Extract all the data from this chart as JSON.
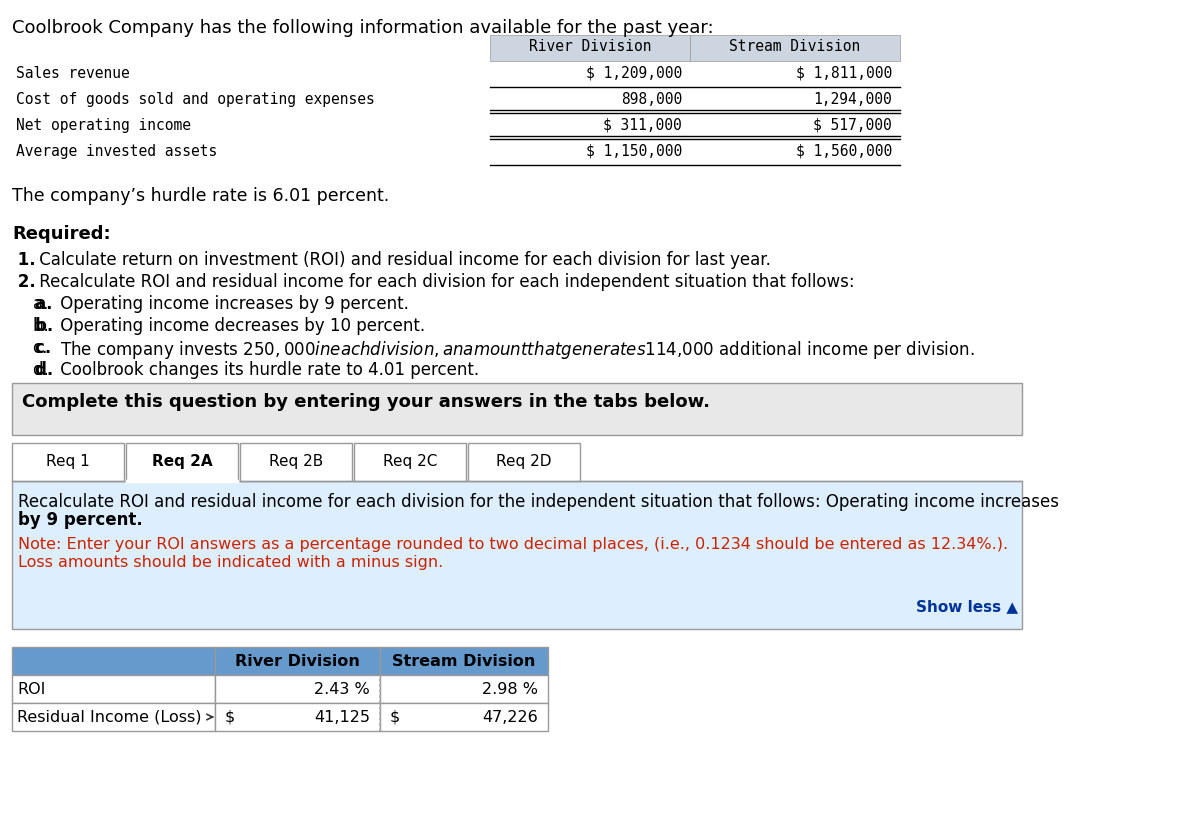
{
  "title_text": "Coolbrook Company has the following information available for the past year:",
  "top_table_rows": [
    [
      "Sales revenue",
      "$ 1,209,000",
      "$ 1,811,000"
    ],
    [
      "Cost of goods sold and operating expenses",
      "898,000",
      "1,294,000"
    ],
    [
      "Net operating income",
      "$ 311,000",
      "$ 517,000"
    ],
    [
      "Average invested assets",
      "$ 1,150,000",
      "$ 1,560,000"
    ]
  ],
  "hurdle_text": "The company’s hurdle rate is 6.01 percent.",
  "required_label": "Required:",
  "req_lines": [
    [
      " 1.",
      " Calculate return on investment (ROI) and residual income for each division for last year.",
      false
    ],
    [
      " 2.",
      " Recalculate ROI and residual income for each division for each independent situation that follows:",
      false
    ],
    [
      "    a.",
      " Operating income increases by 9 percent.",
      false
    ],
    [
      "    b.",
      " Operating income decreases by 10 percent.",
      false
    ],
    [
      "    c.",
      " The company invests $250,000 in each division, an amount that generates $114,000 additional income per division.",
      false
    ],
    [
      "    d.",
      " Coolbrook changes its hurdle rate to 4.01 percent.",
      false
    ]
  ],
  "complete_box_text": "Complete this question by entering your answers in the tabs below.",
  "tabs": [
    "Req 1",
    "Req 2A",
    "Req 2B",
    "Req 2C",
    "Req 2D"
  ],
  "active_tab_idx": 1,
  "instruction_line1": "Recalculate ROI and residual income for each division for the independent situation that follows: Operating income increases",
  "instruction_line2": "by 9 percent.",
  "note_line1": "Note: Enter your ROI answers as a percentage rounded to two decimal places, (i.e., 0.1234 should be entered as 12.34%.).",
  "note_line2": "Loss amounts should be indicated with a minus sign.",
  "show_less_text": "Show less ▲",
  "bt_col1_header": "River Division",
  "bt_col2_header": "Stream Division",
  "bt_row1_label": "ROI",
  "bt_row1_col1": "2.43 %",
  "bt_row1_col2": "2.98 %",
  "bt_row2_label": "Residual Income (Loss)",
  "bt_row2_col1_dollar": "$",
  "bt_row2_col1_val": "41,125",
  "bt_row2_col2_dollar": "$",
  "bt_row2_col2_val": "47,226",
  "bg_white": "#ffffff",
  "bg_light_gray": "#e8e8e8",
  "bg_blue_instr": "#ddeeff",
  "bg_table_header_blue": "#6699cc",
  "color_black": "#000000",
  "color_red": "#cc2200",
  "color_dark_blue": "#003399",
  "color_gray_border": "#999999",
  "color_dark_gray": "#555555",
  "top_header_bg": "#ccd5e0",
  "page_bg": "#ffffff"
}
